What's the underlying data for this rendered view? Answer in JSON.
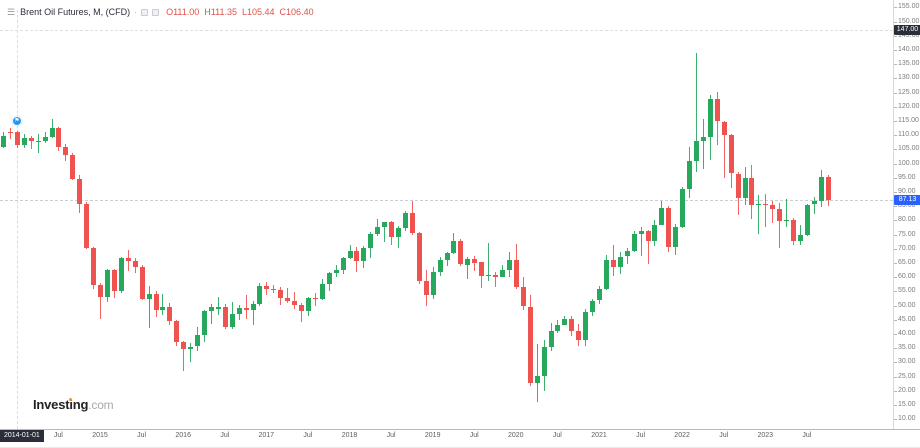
{
  "header": {
    "menu_icon": "☰",
    "symbol_title": "Brent Oil Futures, M, (CFD)",
    "separator": "·",
    "ohlc": {
      "open": "O111.00",
      "high": "H111.35",
      "low": "L105.44",
      "close": "C106.40"
    }
  },
  "colors": {
    "up": "#26a95d",
    "down": "#ef5350",
    "ohlc_text": "#df514c",
    "crosshair_badge_bg": "#2a2e39",
    "last_price_badge_bg": "#2962ff",
    "marker_blue": "#2196f3",
    "logo_orange": "#f7941d"
  },
  "price_axis": {
    "tick_values": [
      155,
      150,
      145,
      140,
      135,
      130,
      125,
      120,
      115,
      110,
      105,
      100,
      95,
      90,
      85,
      80,
      75,
      70,
      65,
      60,
      55,
      50,
      45,
      40,
      35,
      30,
      25,
      20,
      15,
      10
    ],
    "crosshair_label": "147.00",
    "crosshair_value": 147.0,
    "last_price_label": "87.13",
    "last_price_value": 87.13
  },
  "time_axis": {
    "crosshair_label": "2014-01-01",
    "crosshair_month_index": 2,
    "labels": [
      {
        "text": "Jul",
        "i": 8
      },
      {
        "text": "2015",
        "i": 14
      },
      {
        "text": "Jul",
        "i": 20
      },
      {
        "text": "2016",
        "i": 26
      },
      {
        "text": "Jul",
        "i": 32
      },
      {
        "text": "2017",
        "i": 38
      },
      {
        "text": "Jul",
        "i": 44
      },
      {
        "text": "2018",
        "i": 50
      },
      {
        "text": "Jul",
        "i": 56
      },
      {
        "text": "2019",
        "i": 62
      },
      {
        "text": "Jul",
        "i": 68
      },
      {
        "text": "2020",
        "i": 74
      },
      {
        "text": "Jul",
        "i": 80
      },
      {
        "text": "2021",
        "i": 86
      },
      {
        "text": "Jul",
        "i": 92
      },
      {
        "text": "2022",
        "i": 98
      },
      {
        "text": "Jul",
        "i": 104
      },
      {
        "text": "2023",
        "i": 110
      },
      {
        "text": "Jul",
        "i": 116
      }
    ]
  },
  "event_marker": {
    "glyph": "⚑",
    "month_index": 2,
    "price": 115.0
  },
  "logo": {
    "text_main": "Investing",
    "text_suffix": ".com"
  },
  "chart_data": {
    "type": "candlestick",
    "timeframe": "monthly",
    "title": "Brent Oil Futures, M, (CFD)",
    "visible_price_range": [
      10,
      155
    ],
    "grid": false,
    "legend_position": "top-left",
    "candle_fields": [
      "time",
      "open",
      "high",
      "low",
      "close"
    ],
    "candles": [
      [
        "2013-11",
        106.0,
        111.0,
        105.6,
        109.7
      ],
      [
        "2013-12",
        111.3,
        112.4,
        108.8,
        110.8
      ],
      [
        "2014-01",
        111.0,
        111.35,
        105.44,
        106.4
      ],
      [
        "2014-02",
        106.4,
        110.6,
        105.6,
        109.0
      ],
      [
        "2014-03",
        109.0,
        109.9,
        105.1,
        107.8
      ],
      [
        "2014-04",
        107.8,
        110.4,
        103.9,
        108.1
      ],
      [
        "2014-05",
        108.1,
        111.0,
        107.1,
        109.4
      ],
      [
        "2014-06",
        109.4,
        115.7,
        108.9,
        112.4
      ],
      [
        "2014-07",
        112.4,
        113.0,
        104.4,
        106.0
      ],
      [
        "2014-08",
        106.0,
        106.9,
        101.1,
        103.2
      ],
      [
        "2014-09",
        103.2,
        103.7,
        94.2,
        94.7
      ],
      [
        "2014-10",
        94.7,
        95.9,
        82.6,
        85.9
      ],
      [
        "2014-11",
        85.9,
        86.4,
        69.8,
        70.2
      ],
      [
        "2014-12",
        70.2,
        70.6,
        55.8,
        57.3
      ],
      [
        "2015-01",
        57.3,
        58.0,
        45.2,
        52.9
      ],
      [
        "2015-02",
        52.9,
        63.0,
        51.4,
        62.6
      ],
      [
        "2015-03",
        62.6,
        63.0,
        52.5,
        55.1
      ],
      [
        "2015-04",
        55.1,
        67.1,
        54.3,
        66.8
      ],
      [
        "2015-05",
        66.8,
        69.6,
        62.0,
        65.6
      ],
      [
        "2015-06",
        65.6,
        66.8,
        61.3,
        63.6
      ],
      [
        "2015-07",
        63.6,
        64.2,
        51.9,
        52.2
      ],
      [
        "2015-08",
        52.2,
        56.9,
        42.2,
        54.2
      ],
      [
        "2015-09",
        54.2,
        55.0,
        45.8,
        48.4
      ],
      [
        "2015-10",
        48.4,
        54.0,
        46.5,
        49.6
      ],
      [
        "2015-11",
        49.6,
        50.9,
        43.0,
        44.6
      ],
      [
        "2015-12",
        44.6,
        45.1,
        35.9,
        37.3
      ],
      [
        "2016-01",
        37.3,
        37.5,
        27.1,
        34.7
      ],
      [
        "2016-02",
        34.7,
        37.0,
        30.0,
        35.6
      ],
      [
        "2016-03",
        35.6,
        42.5,
        34.1,
        39.6
      ],
      [
        "2016-04",
        39.6,
        48.5,
        37.3,
        48.1
      ],
      [
        "2016-05",
        48.1,
        50.5,
        43.6,
        49.7
      ],
      [
        "2016-06",
        49.0,
        52.9,
        46.7,
        49.7
      ],
      [
        "2016-07",
        49.7,
        50.5,
        41.8,
        42.5
      ],
      [
        "2016-08",
        42.5,
        51.2,
        41.6,
        47.0
      ],
      [
        "2016-09",
        47.0,
        50.1,
        44.9,
        49.1
      ],
      [
        "2016-10",
        49.1,
        53.7,
        45.1,
        48.3
      ],
      [
        "2016-11",
        48.3,
        51.7,
        43.0,
        50.5
      ],
      [
        "2016-12",
        50.5,
        57.9,
        49.9,
        56.8
      ],
      [
        "2017-01",
        56.8,
        58.4,
        53.6,
        55.7
      ],
      [
        "2017-02",
        55.7,
        57.3,
        54.5,
        55.6
      ],
      [
        "2017-03",
        55.6,
        56.7,
        50.2,
        52.8
      ],
      [
        "2017-04",
        52.8,
        56.1,
        50.8,
        51.7
      ],
      [
        "2017-05",
        51.7,
        54.7,
        48.8,
        50.3
      ],
      [
        "2017-06",
        50.3,
        51.1,
        44.4,
        47.9
      ],
      [
        "2017-07",
        47.9,
        52.9,
        46.3,
        52.7
      ],
      [
        "2017-08",
        52.7,
        54.3,
        49.8,
        52.4
      ],
      [
        "2017-09",
        52.4,
        59.5,
        52.0,
        57.5
      ],
      [
        "2017-10",
        57.5,
        61.7,
        55.1,
        61.4
      ],
      [
        "2017-11",
        61.4,
        64.3,
        60.1,
        62.6
      ],
      [
        "2017-12",
        62.6,
        67.0,
        61.2,
        66.9
      ],
      [
        "2018-01",
        66.9,
        71.3,
        66.5,
        69.1
      ],
      [
        "2018-02",
        69.1,
        70.5,
        61.8,
        65.8
      ],
      [
        "2018-03",
        65.8,
        71.1,
        63.2,
        70.3
      ],
      [
        "2018-04",
        70.3,
        75.9,
        66.8,
        75.2
      ],
      [
        "2018-05",
        75.2,
        80.5,
        74.5,
        77.6
      ],
      [
        "2018-06",
        77.6,
        79.6,
        72.4,
        79.4
      ],
      [
        "2018-07",
        79.4,
        79.9,
        71.2,
        74.2
      ],
      [
        "2018-08",
        74.2,
        77.9,
        70.3,
        77.4
      ],
      [
        "2018-09",
        77.4,
        83.3,
        76.3,
        82.7
      ],
      [
        "2018-10",
        82.7,
        86.7,
        74.8,
        75.5
      ],
      [
        "2018-11",
        75.5,
        76.0,
        57.5,
        58.7
      ],
      [
        "2018-12",
        58.7,
        62.5,
        49.9,
        53.8
      ],
      [
        "2019-01",
        53.8,
        63.6,
        52.5,
        61.9
      ],
      [
        "2019-02",
        61.9,
        67.1,
        60.6,
        66.0
      ],
      [
        "2019-03",
        66.0,
        69.0,
        64.0,
        68.4
      ],
      [
        "2019-04",
        68.4,
        75.6,
        68.3,
        72.8
      ],
      [
        "2019-05",
        72.8,
        73.6,
        64.0,
        64.5
      ],
      [
        "2019-06",
        64.5,
        67.0,
        59.5,
        66.6
      ],
      [
        "2019-07",
        66.6,
        67.6,
        62.0,
        65.2
      ],
      [
        "2019-08",
        65.2,
        65.5,
        56.2,
        60.4
      ],
      [
        "2019-09",
        60.4,
        71.9,
        58.8,
        60.8
      ],
      [
        "2019-10",
        60.8,
        62.0,
        56.5,
        60.2
      ],
      [
        "2019-11",
        60.2,
        64.3,
        60.0,
        62.4
      ],
      [
        "2019-12",
        62.4,
        68.9,
        60.2,
        66.0
      ],
      [
        "2020-01",
        66.0,
        71.8,
        56.0,
        56.6
      ],
      [
        "2020-02",
        56.6,
        60.0,
        48.4,
        49.7
      ],
      [
        "2020-03",
        49.7,
        53.9,
        21.7,
        22.7
      ],
      [
        "2020-04",
        22.7,
        36.4,
        16.0,
        25.3
      ],
      [
        "2020-05",
        25.3,
        37.8,
        19.9,
        35.3
      ],
      [
        "2020-06",
        35.3,
        43.9,
        34.0,
        41.1
      ],
      [
        "2020-07",
        41.1,
        45.0,
        40.2,
        43.3
      ],
      [
        "2020-08",
        43.3,
        46.5,
        43.0,
        45.3
      ],
      [
        "2020-09",
        45.3,
        46.3,
        39.3,
        40.9
      ],
      [
        "2020-10",
        40.9,
        43.6,
        35.7,
        37.9
      ],
      [
        "2020-11",
        37.9,
        48.8,
        35.9,
        47.6
      ],
      [
        "2020-12",
        47.6,
        52.5,
        46.2,
        51.8
      ],
      [
        "2021-01",
        51.8,
        57.0,
        50.6,
        55.9
      ],
      [
        "2021-02",
        55.9,
        67.7,
        55.5,
        66.1
      ],
      [
        "2021-03",
        66.1,
        71.4,
        60.3,
        63.5
      ],
      [
        "2021-04",
        63.5,
        69.0,
        61.0,
        67.3
      ],
      [
        "2021-05",
        67.3,
        70.3,
        64.6,
        69.3
      ],
      [
        "2021-06",
        69.3,
        76.2,
        69.0,
        75.1
      ],
      [
        "2021-07",
        75.1,
        77.8,
        67.6,
        76.3
      ],
      [
        "2021-08",
        76.3,
        76.7,
        64.6,
        72.9
      ],
      [
        "2021-09",
        72.9,
        80.0,
        71.0,
        78.5
      ],
      [
        "2021-10",
        78.5,
        86.7,
        78.2,
        84.4
      ],
      [
        "2021-11",
        84.4,
        85.1,
        68.9,
        70.6
      ],
      [
        "2021-12",
        70.6,
        78.6,
        67.7,
        77.8
      ],
      [
        "2022-01",
        77.8,
        91.7,
        77.4,
        91.2
      ],
      [
        "2022-02",
        91.2,
        105.8,
        88.0,
        101.0
      ],
      [
        "2022-03",
        101.0,
        139.1,
        96.9,
        107.9
      ],
      [
        "2022-04",
        107.9,
        115.7,
        98.1,
        109.3
      ],
      [
        "2022-05",
        109.3,
        124.0,
        101.3,
        122.8
      ],
      [
        "2022-06",
        122.8,
        125.2,
        106.5,
        114.8
      ],
      [
        "2022-07",
        114.8,
        115.0,
        95.0,
        110.0
      ],
      [
        "2022-08",
        110.0,
        110.5,
        91.5,
        96.5
      ],
      [
        "2022-09",
        96.5,
        97.0,
        81.9,
        88.0
      ],
      [
        "2022-10",
        88.0,
        98.7,
        85.4,
        94.8
      ],
      [
        "2022-11",
        94.8,
        99.6,
        80.6,
        85.4
      ],
      [
        "2022-12",
        85.4,
        89.0,
        75.1,
        85.9
      ],
      [
        "2023-01",
        85.9,
        89.2,
        77.7,
        85.5
      ],
      [
        "2023-02",
        85.5,
        86.8,
        79.1,
        83.9
      ],
      [
        "2023-03",
        83.9,
        86.2,
        70.1,
        79.8
      ],
      [
        "2023-04",
        79.8,
        87.5,
        77.5,
        80.3
      ],
      [
        "2023-05",
        80.3,
        80.8,
        71.3,
        72.7
      ],
      [
        "2023-06",
        72.7,
        78.5,
        71.5,
        74.9
      ],
      [
        "2023-07",
        74.9,
        85.9,
        74.5,
        85.6
      ],
      [
        "2023-08",
        85.6,
        88.2,
        82.3,
        86.9
      ],
      [
        "2023-09",
        86.9,
        97.7,
        84.6,
        95.3
      ],
      [
        "2023-10",
        95.3,
        95.9,
        84.9,
        87.13
      ]
    ]
  }
}
